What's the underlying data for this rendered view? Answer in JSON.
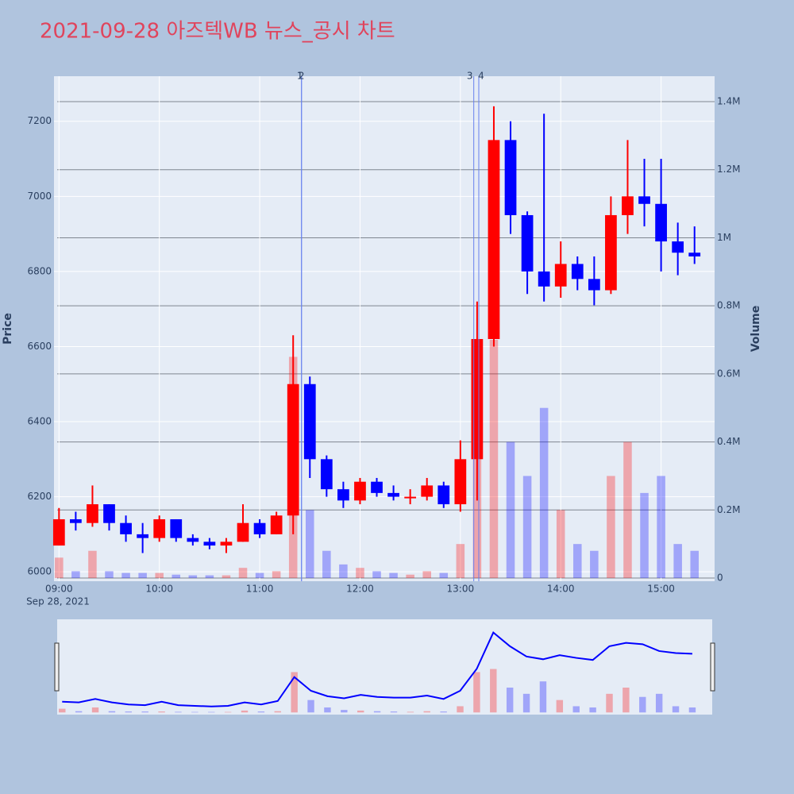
{
  "chart_data": {
    "type": "candlestick",
    "title": "2021-09-28 아즈텍WB 뉴스_공시 차트",
    "y_label": "Price",
    "y2_label": "Volume",
    "increasing_color": "#ff0000",
    "decreasing_color": "#0000ff",
    "x": [
      "2021-09-28 09:00",
      "2021-09-28 09:10",
      "2021-09-28 09:20",
      "2021-09-28 09:30",
      "2021-09-28 09:40",
      "2021-09-28 09:50",
      "2021-09-28 10:00",
      "2021-09-28 10:10",
      "2021-09-28 10:20",
      "2021-09-28 10:30",
      "2021-09-28 10:40",
      "2021-09-28 10:50",
      "2021-09-28 11:00",
      "2021-09-28 11:10",
      "2021-09-28 11:20",
      "2021-09-28 11:30",
      "2021-09-28 11:40",
      "2021-09-28 11:50",
      "2021-09-28 12:00",
      "2021-09-28 12:10",
      "2021-09-28 12:20",
      "2021-09-28 12:30",
      "2021-09-28 12:40",
      "2021-09-28 12:50",
      "2021-09-28 13:00",
      "2021-09-28 13:10",
      "2021-09-28 13:20",
      "2021-09-28 13:30",
      "2021-09-28 13:40",
      "2021-09-28 13:50",
      "2021-09-28 14:00",
      "2021-09-28 14:10",
      "2021-09-28 14:20",
      "2021-09-28 14:30",
      "2021-09-28 14:40",
      "2021-09-28 14:50",
      "2021-09-28 15:00",
      "2021-09-28 15:10",
      "2021-09-28 15:20"
    ],
    "open": [
      6070,
      6140,
      6130,
      6180,
      6130,
      6100,
      6090,
      6140,
      6090,
      6080,
      6070,
      6080,
      6130,
      6100,
      6150,
      6500,
      6300,
      6220,
      6190,
      6240,
      6210,
      6200,
      6200,
      6230,
      6180,
      6300,
      6620,
      7150,
      6950,
      6800,
      6760,
      6820,
      6780,
      6750,
      6950,
      7000,
      6980,
      6880,
      6850
    ],
    "high": [
      6170,
      6160,
      6230,
      6180,
      6150,
      6130,
      6150,
      6140,
      6100,
      6090,
      6090,
      6180,
      6140,
      6160,
      6630,
      6520,
      6310,
      6240,
      6250,
      6250,
      6230,
      6220,
      6250,
      6240,
      6350,
      6720,
      7240,
      7200,
      6960,
      7220,
      6880,
      6840,
      6840,
      7000,
      7150,
      7100,
      7100,
      6930,
      6920
    ],
    "low": [
      6070,
      6110,
      6120,
      6110,
      6080,
      6050,
      6080,
      6080,
      6070,
      6060,
      6050,
      6080,
      6090,
      6100,
      6100,
      6250,
      6200,
      6170,
      6180,
      6200,
      6190,
      6180,
      6190,
      6170,
      6160,
      6190,
      6600,
      6900,
      6740,
      6720,
      6730,
      6750,
      6710,
      6740,
      6900,
      6920,
      6800,
      6790,
      6820
    ],
    "close": [
      6140,
      6130,
      6180,
      6130,
      6100,
      6090,
      6140,
      6090,
      6080,
      6070,
      6080,
      6130,
      6100,
      6150,
      6500,
      6300,
      6220,
      6190,
      6240,
      6210,
      6200,
      6200,
      6230,
      6180,
      6300,
      6620,
      7150,
      6950,
      6800,
      6760,
      6820,
      6780,
      6750,
      6950,
      7000,
      6980,
      6880,
      6850,
      6840
    ],
    "volume": [
      60000,
      20000,
      80000,
      20000,
      15000,
      15000,
      15000,
      10000,
      8000,
      8000,
      8000,
      30000,
      15000,
      20000,
      650000,
      200000,
      80000,
      40000,
      30000,
      20000,
      15000,
      10000,
      20000,
      15000,
      100000,
      650000,
      700000,
      400000,
      300000,
      500000,
      200000,
      100000,
      80000,
      300000,
      400000,
      250000,
      300000,
      100000,
      80000
    ],
    "xlim": [
      "2021-09-28 08:57",
      "2021-09-28 15:32"
    ],
    "xticks": [
      {
        "value": "2021-09-28 09:00",
        "label": "09:00"
      },
      {
        "value": "2021-09-28 10:00",
        "label": "10:00"
      },
      {
        "value": "2021-09-28 11:00",
        "label": "11:00"
      },
      {
        "value": "2021-09-28 12:00",
        "label": "12:00"
      },
      {
        "value": "2021-09-28 13:00",
        "label": "13:00"
      },
      {
        "value": "2021-09-28 14:00",
        "label": "14:00"
      },
      {
        "value": "2021-09-28 15:00",
        "label": "15:00"
      }
    ],
    "x_date_label": "Sep 28, 2021",
    "ylim": [
      5975,
      7320
    ],
    "yticks": [
      6000,
      6200,
      6400,
      6600,
      6800,
      7000,
      7200
    ],
    "y2lim": [
      -9300,
      1474700
    ],
    "y2ticks": [
      0,
      {
        "value": 200000,
        "label": "0.2M"
      },
      {
        "value": 400000,
        "label": "0.4M"
      },
      {
        "value": 600000,
        "label": "0.6M"
      },
      {
        "value": 800000,
        "label": "0.8M"
      },
      {
        "value": 1000000,
        "label": "1M"
      },
      {
        "value": 1200000,
        "label": "1.2M"
      },
      {
        "value": 1400000,
        "label": "1.4M"
      }
    ],
    "annotations": [
      {
        "x": "2021-09-28 11:25",
        "label": "1"
      },
      {
        "x": "2021-09-28 11:25",
        "label": "2"
      },
      {
        "x": "2021-09-28 13:08",
        "label": "3"
      },
      {
        "x": "2021-09-28 13:11",
        "label": "4"
      }
    ],
    "grid": true
  }
}
